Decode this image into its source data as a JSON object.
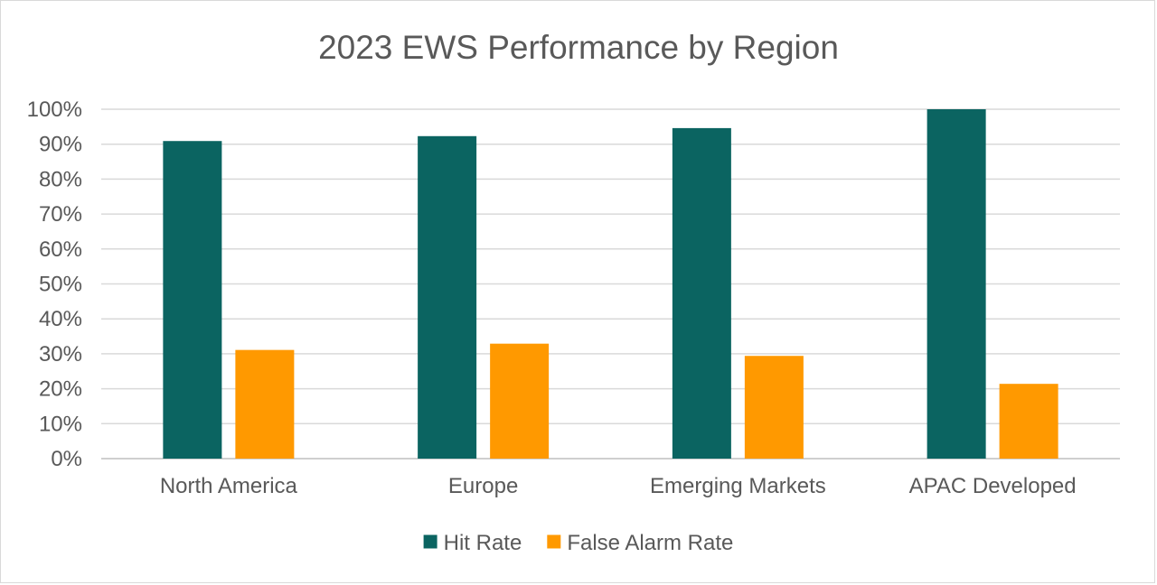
{
  "chart_data": {
    "type": "bar",
    "title": "2023 EWS Performance by Region",
    "xlabel": "",
    "ylabel": "",
    "categories": [
      "North America",
      "Europe",
      "Emerging Markets",
      "APAC Developed"
    ],
    "series": [
      {
        "name": "Hit Rate",
        "color": "#0b6461",
        "values": [
          0.909,
          0.923,
          0.946,
          1.0
        ]
      },
      {
        "name": "False Alarm Rate",
        "color": "#ff9900",
        "values": [
          0.311,
          0.329,
          0.294,
          0.214
        ]
      }
    ],
    "ylim": [
      0,
      1
    ],
    "y_ticks": [
      "0%",
      "10%",
      "20%",
      "30%",
      "40%",
      "50%",
      "60%",
      "70%",
      "80%",
      "90%",
      "100%"
    ],
    "grid": true,
    "legend_position": "bottom"
  }
}
